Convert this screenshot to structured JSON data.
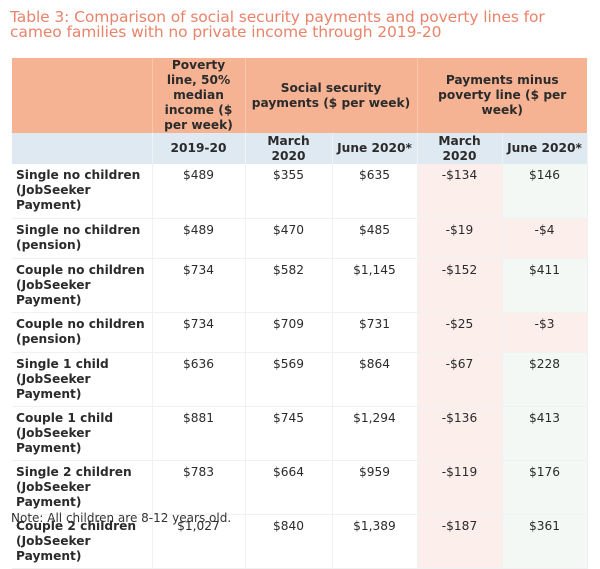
{
  "title": "Table 3: Comparison of social security payments and poverty lines for cameo families with no private income through 2019-20",
  "headers": {
    "blank": "",
    "poverty_line": "Poverty line, 50% median income ($ per week)",
    "social_security": "Social security payments ($ per week)",
    "payments_minus": "Payments minus poverty line ($ per week)"
  },
  "subheaders": [
    "",
    "2019-20",
    "March 2020",
    "June 2020*",
    "March 2020",
    "June 2020*"
  ],
  "rows": [
    {
      "label": "Single no children (JobSeeker Payment)",
      "poverty": "$489",
      "ss_march": "$355",
      "ss_june": "$635",
      "diff_march": "-$134",
      "diff_june": "$146"
    },
    {
      "label": "Single no children (pension)",
      "poverty": "$489",
      "ss_march": "$470",
      "ss_june": "$485",
      "diff_march": "-$19",
      "diff_june": "-$4"
    },
    {
      "label": "Couple no children (JobSeeker Payment)",
      "poverty": "$734",
      "ss_march": "$582",
      "ss_june": "$1,145",
      "diff_march": "-$152",
      "diff_june": "$411"
    },
    {
      "label": "Couple no children (pension)",
      "poverty": "$734",
      "ss_march": "$709",
      "ss_june": "$731",
      "diff_march": "-$25",
      "diff_june": "-$3"
    },
    {
      "label": "Single 1 child (JobSeeker Payment)",
      "poverty": "$636",
      "ss_march": "$569",
      "ss_june": "$864",
      "diff_march": "-$67",
      "diff_june": "$228"
    },
    {
      "label": "Couple 1 child (JobSeeker Payment)",
      "poverty": "$881",
      "ss_march": "$745",
      "ss_june": "$1,294",
      "diff_march": "-$136",
      "diff_june": "$413"
    },
    {
      "label": "Single 2 children (JobSeeker Payment)",
      "poverty": "$783",
      "ss_march": "$664",
      "ss_june": "$959",
      "diff_march": "-$119",
      "diff_june": "$176"
    },
    {
      "label": "Couple 2 children (JobSeeker Payment)",
      "poverty": "$1,027",
      "ss_march": "$840",
      "ss_june": "$1,389",
      "diff_march": "-$187",
      "diff_june": "$361"
    }
  ],
  "note": "Note: All children are 8-12 years old.",
  "colors": {
    "title": "#e9836a",
    "header_bg": "#f6b394",
    "subheader_bg": "#dfe9f2",
    "negative_bg": "#fbeeeb",
    "positive_bg": "#f4f8f4"
  }
}
